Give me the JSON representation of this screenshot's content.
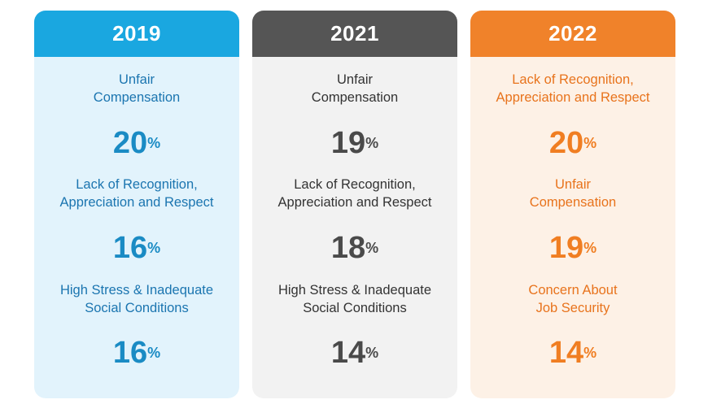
{
  "colors": {
    "blue_head": "#1aa7e0",
    "blue_body": "#e2f3fc",
    "blue_label": "#1b75b0",
    "blue_value": "#1a8bc4",
    "gray_head": "#555555",
    "gray_body": "#f2f2f2",
    "gray_label": "#333333",
    "gray_value": "#4a4a4a",
    "orange_head": "#f0822a",
    "orange_body": "#fdf1e6",
    "orange_label": "#e8731c",
    "orange_value": "#f07e22"
  },
  "cards": [
    {
      "year": "2019",
      "items": [
        {
          "label_lines": [
            "Unfair",
            "Compensation"
          ],
          "value": "20",
          "unit": "%"
        },
        {
          "label_lines": [
            "Lack of Recognition,",
            "Appreciation and Respect"
          ],
          "value": "16",
          "unit": "%"
        },
        {
          "label_lines": [
            "High Stress & Inadequate",
            "Social Conditions"
          ],
          "value": "16",
          "unit": "%"
        }
      ]
    },
    {
      "year": "2021",
      "items": [
        {
          "label_lines": [
            "Unfair",
            "Compensation"
          ],
          "value": "19",
          "unit": "%"
        },
        {
          "label_lines": [
            "Lack of Recognition,",
            "Appreciation and Respect"
          ],
          "value": "18",
          "unit": "%"
        },
        {
          "label_lines": [
            "High Stress & Inadequate",
            "Social Conditions"
          ],
          "value": "14",
          "unit": "%"
        }
      ]
    },
    {
      "year": "2022",
      "items": [
        {
          "label_lines": [
            "Lack of Recognition,",
            "Appreciation and Respect"
          ],
          "value": "20",
          "unit": "%"
        },
        {
          "label_lines": [
            "Unfair",
            "Compensation"
          ],
          "value": "19",
          "unit": "%"
        },
        {
          "label_lines": [
            "Concern About",
            "Job Security"
          ],
          "value": "14",
          "unit": "%"
        }
      ]
    }
  ]
}
